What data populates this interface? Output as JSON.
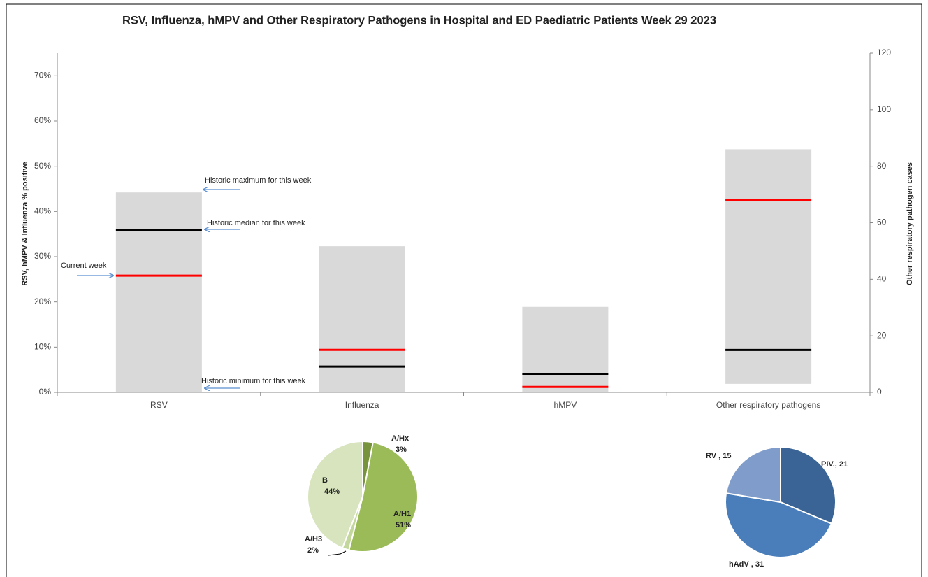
{
  "chart_data": [
    {
      "type": "range_bar",
      "title": "RSV, Influenza, hMPV and Other Respiratory Pathogens in Hospital and ED Paediatric Patients Week 29 2023",
      "ylabel": "RSV, hMPV & Influenza % positive",
      "y2label": "Other respiratory pathogen cases",
      "categories": [
        "RSV",
        "Influenza",
        "hMPV",
        "Other respiratory pathogens"
      ],
      "axis_by_category": [
        "y",
        "y",
        "y",
        "y2"
      ],
      "bar_color": "#d9d9d9",
      "series": [
        {
          "name": "Historic maximum for this week",
          "role": "max",
          "values": [
            44.2,
            32.3,
            18.9,
            86
          ]
        },
        {
          "name": "Historic minimum for this week",
          "role": "min",
          "values": [
            0,
            0,
            0,
            3
          ]
        },
        {
          "name": "Historic median for this week",
          "role": "line",
          "color": "#000000",
          "values": [
            35.9,
            5.7,
            4.1,
            15
          ]
        },
        {
          "name": "Current week",
          "role": "line",
          "color": "#ff0000",
          "values": [
            25.8,
            9.4,
            1.2,
            68
          ]
        }
      ],
      "ylim": [
        0,
        75
      ],
      "yticks": [
        {
          "value": 0,
          "label": "0%"
        },
        {
          "value": 10,
          "label": "10%"
        },
        {
          "value": 20,
          "label": "20%"
        },
        {
          "value": 30,
          "label": "30%"
        },
        {
          "value": 40,
          "label": "40%"
        },
        {
          "value": 50,
          "label": "50%"
        },
        {
          "value": 60,
          "label": "60%"
        },
        {
          "value": 70,
          "label": "70%"
        }
      ],
      "y2lim": [
        0,
        120
      ],
      "y2ticks": [
        0,
        20,
        40,
        60,
        80,
        100,
        120
      ]
    },
    {
      "type": "pie",
      "categories": [
        "A/Hx",
        "A/H1",
        "A/H3",
        "B"
      ],
      "values": [
        3,
        51,
        2,
        44
      ],
      "value_labels": [
        "3%",
        "51%",
        "2%",
        "44%"
      ],
      "colors": [
        "#77933c",
        "#9bbb59",
        "#c3d69b",
        "#d7e4bd"
      ]
    },
    {
      "type": "pie",
      "values": [
        21,
        31,
        15
      ],
      "value_labels": [
        "PIV., 21",
        "hAdV , 31",
        "RV , 15"
      ],
      "colors": [
        "#3b6496",
        "#4a7ebb",
        "#7f9ccb"
      ]
    }
  ]
}
